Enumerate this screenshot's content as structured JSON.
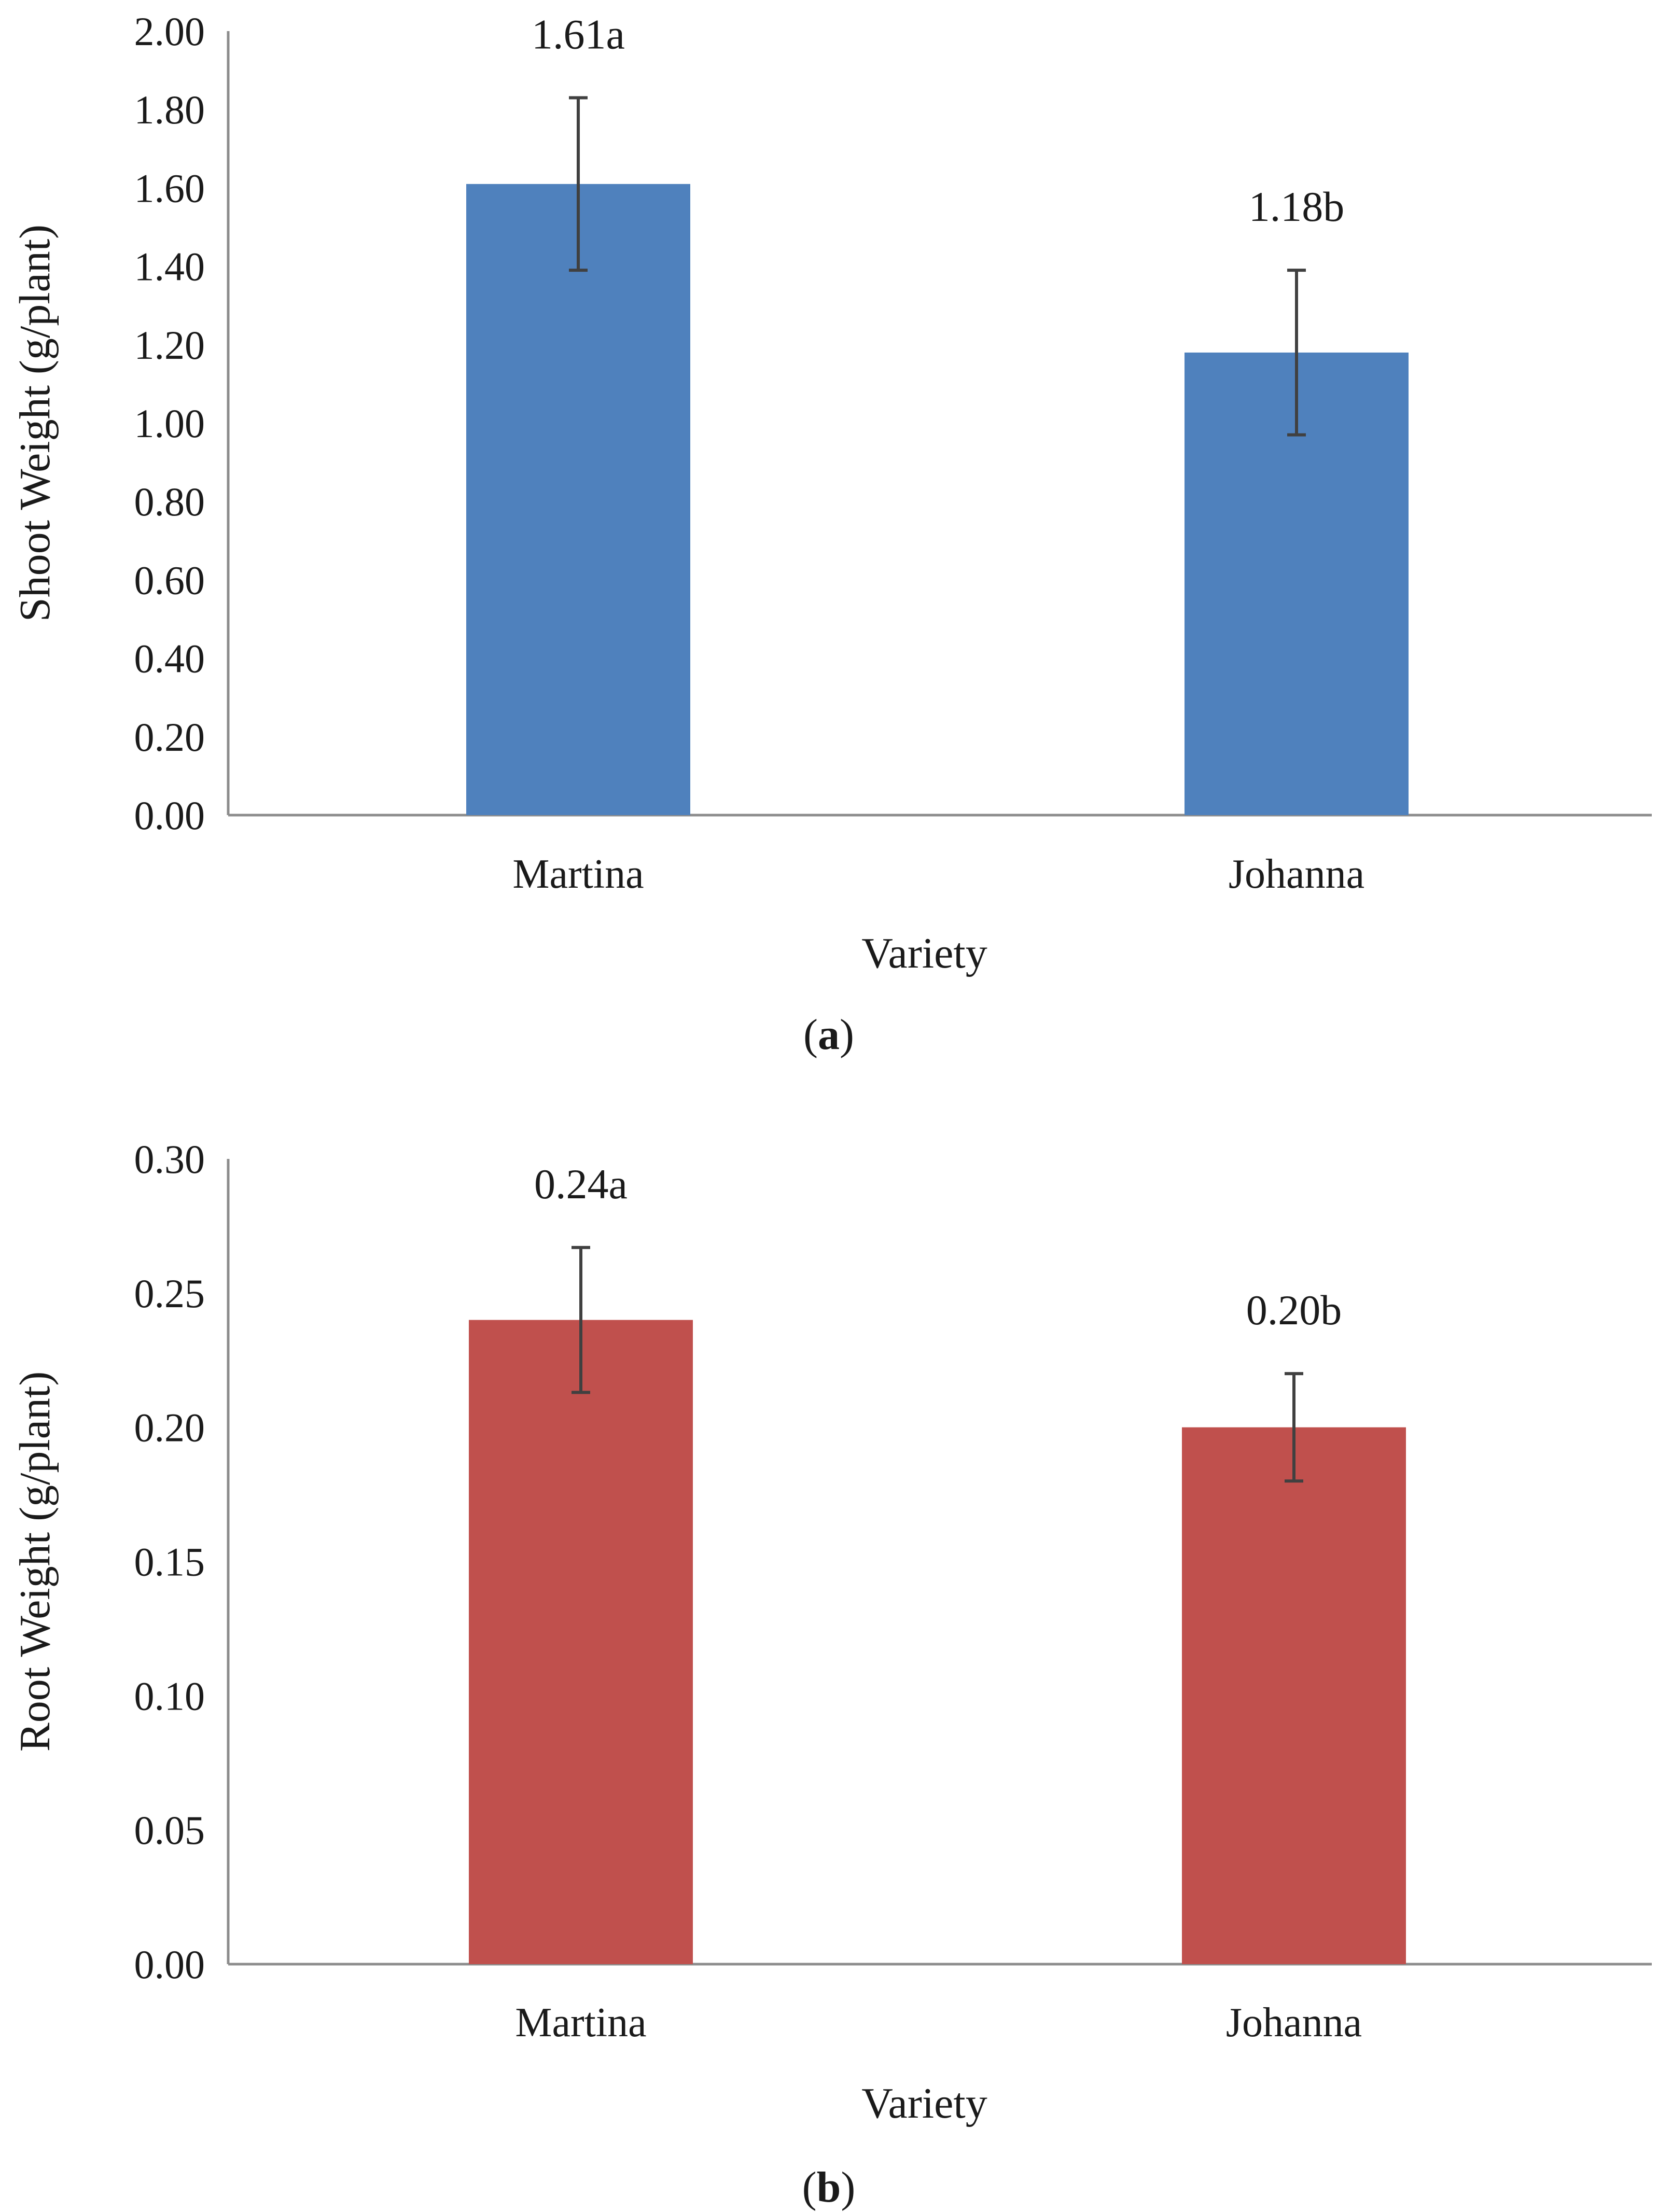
{
  "chart_data": [
    {
      "id": "a",
      "type": "bar",
      "categories": [
        "Martina",
        "Johanna"
      ],
      "values": [
        1.61,
        1.18
      ],
      "errors": [
        0.22,
        0.21
      ],
      "data_labels": [
        "1.61a",
        "1.18b"
      ],
      "ylabel": "Shoot Weight (g/plant)",
      "xlabel": "Variety",
      "ylim": [
        0,
        2
      ],
      "yticks": [
        "0.00",
        "0.20",
        "0.40",
        "0.60",
        "0.80",
        "1.00",
        "1.20",
        "1.40",
        "1.60",
        "1.80",
        "2.00"
      ],
      "tick_step": 0.2,
      "grid": false,
      "bar_color": "#4F81BD",
      "caption_prefix": "(",
      "caption_letter": "a",
      "caption_suffix": ")"
    },
    {
      "id": "b",
      "type": "bar",
      "categories": [
        "Martina",
        "Johanna"
      ],
      "values": [
        0.24,
        0.2
      ],
      "errors": [
        0.027,
        0.02
      ],
      "data_labels": [
        "0.24a",
        "0.20b"
      ],
      "ylabel": "Root Weight (g/plant)",
      "xlabel": "Variety",
      "ylim": [
        0,
        0.3
      ],
      "yticks": [
        "0.00",
        "0.05",
        "0.10",
        "0.15",
        "0.20",
        "0.25",
        "0.30"
      ],
      "tick_step": 0.05,
      "grid": false,
      "bar_color": "#C0504D",
      "caption_prefix": "(",
      "caption_letter": "b",
      "caption_suffix": ")"
    }
  ],
  "colors": {
    "axis": "#8C8C8C",
    "error_bar": "#404040"
  }
}
